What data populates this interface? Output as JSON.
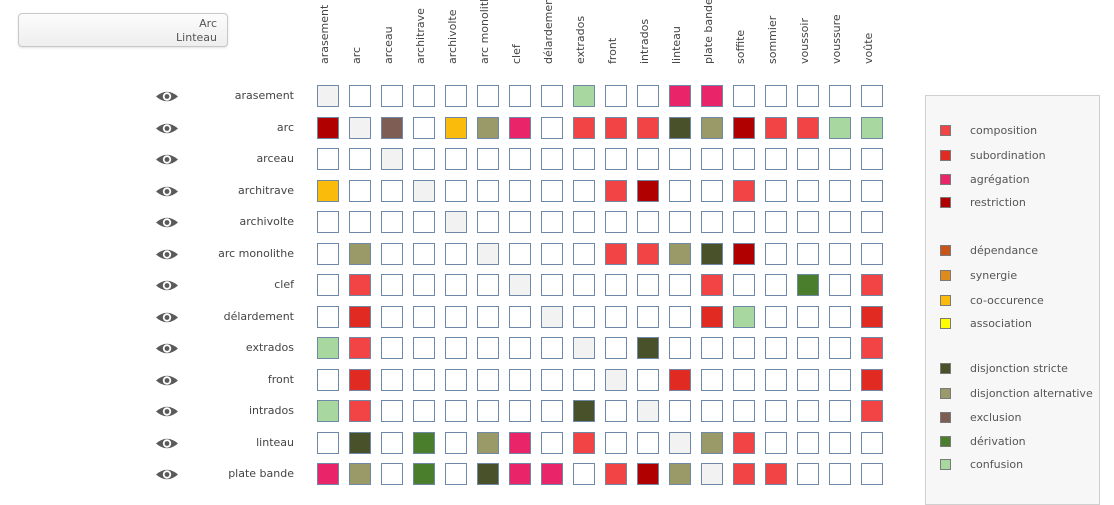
{
  "selector": {
    "line1": "Arc",
    "line2": "Linteau"
  },
  "columns": [
    "arasement",
    "arc",
    "arceau",
    "architrave",
    "archivolte",
    "arc monolithe",
    "clef",
    "délardement",
    "extrados",
    "front",
    "intrados",
    "linteau",
    "plate bande",
    "soffite",
    "sommier",
    "voussoir",
    "voussure",
    "voûte"
  ],
  "rows": [
    {
      "label": "arasement",
      "cells": [
        "g",
        "",
        "",
        "",
        "",
        "",
        "",
        "",
        "cf",
        "",
        "",
        "ag",
        "ag",
        "",
        "",
        "",
        "",
        ""
      ]
    },
    {
      "label": "arc",
      "cells": [
        "r",
        "g",
        "ex",
        "",
        "co",
        "da",
        "ag",
        "",
        "c",
        "c",
        "c",
        "ds",
        "da",
        "r",
        "c",
        "c",
        "cf",
        "cf"
      ]
    },
    {
      "label": "arceau",
      "cells": [
        "",
        "",
        "g",
        "",
        "",
        "",
        "",
        "",
        "",
        "",
        "",
        "",
        "",
        "",
        "",
        "",
        "",
        ""
      ]
    },
    {
      "label": "architrave",
      "cells": [
        "co",
        "",
        "",
        "g",
        "",
        "",
        "",
        "",
        "",
        "c",
        "r",
        "",
        "",
        "c",
        "",
        "",
        "",
        ""
      ]
    },
    {
      "label": "archivolte",
      "cells": [
        "",
        "",
        "",
        "",
        "g",
        "",
        "",
        "",
        "",
        "",
        "",
        "",
        "",
        "",
        "",
        "",
        "",
        ""
      ]
    },
    {
      "label": "arc monolithe",
      "cells": [
        "",
        "da",
        "",
        "",
        "",
        "g",
        "",
        "",
        "",
        "c",
        "c",
        "da",
        "ds",
        "r",
        "",
        "",
        "",
        ""
      ]
    },
    {
      "label": "clef",
      "cells": [
        "",
        "c",
        "",
        "",
        "",
        "",
        "g",
        "",
        "",
        "",
        "",
        "",
        "c",
        "",
        "",
        "dv",
        "",
        "c"
      ]
    },
    {
      "label": "délardement",
      "cells": [
        "",
        "s",
        "",
        "",
        "",
        "",
        "",
        "g",
        "",
        "",
        "",
        "",
        "s",
        "cf",
        "",
        "",
        "",
        "s"
      ]
    },
    {
      "label": "extrados",
      "cells": [
        "cf",
        "c",
        "",
        "",
        "",
        "",
        "",
        "",
        "g",
        "",
        "ds",
        "",
        "",
        "",
        "",
        "",
        "",
        "c"
      ]
    },
    {
      "label": "front",
      "cells": [
        "",
        "s",
        "",
        "",
        "",
        "",
        "",
        "",
        "",
        "g",
        "",
        "s",
        "",
        "",
        "",
        "",
        "",
        "s"
      ]
    },
    {
      "label": "intrados",
      "cells": [
        "cf",
        "c",
        "",
        "",
        "",
        "",
        "",
        "",
        "ds",
        "",
        "g",
        "",
        "",
        "",
        "",
        "",
        "",
        "c"
      ]
    },
    {
      "label": "linteau",
      "cells": [
        "",
        "ds",
        "",
        "dv",
        "",
        "da",
        "ag",
        "",
        "c",
        "",
        "",
        "g",
        "da",
        "c",
        "",
        "",
        "",
        ""
      ]
    },
    {
      "label": "plate bande",
      "cells": [
        "ag",
        "da",
        "",
        "dv",
        "",
        "ds",
        "ag",
        "ag",
        "",
        "c",
        "r",
        "da",
        "g",
        "c",
        "c",
        "",
        "",
        ""
      ]
    }
  ],
  "colors": {
    "c": "#f24444",
    "s": "#e02a22",
    "ag": "#ea2468",
    "r": "#b00000",
    "dp": "#c8561a",
    "sy": "#de8a1c",
    "co": "#fbbb0a",
    "as": "#ffff00",
    "ds": "#49512b",
    "da": "#9a9a68",
    "ex": "#7d5d54",
    "dv": "#4b7e2c",
    "cf": "#a8d8a0",
    "g": "#f2f2f2"
  },
  "legend": [
    {
      "key": "c",
      "label": "composition"
    },
    {
      "key": "s",
      "label": "subordination"
    },
    {
      "key": "ag",
      "label": "agrégation"
    },
    {
      "key": "r",
      "label": "restriction"
    },
    {
      "key": "dp",
      "label": "dépendance"
    },
    {
      "key": "sy",
      "label": "synergie"
    },
    {
      "key": "co",
      "label": "co-occurence"
    },
    {
      "key": "as",
      "label": "association"
    },
    {
      "key": "ds",
      "label": "disjonction stricte"
    },
    {
      "key": "da",
      "label": "disjonction alternative"
    },
    {
      "key": "ex",
      "label": "exclusion"
    },
    {
      "key": "dv",
      "label": "dérivation"
    },
    {
      "key": "cf",
      "label": "confusion"
    }
  ],
  "icons": {
    "row_toggle": "eye-icon"
  }
}
